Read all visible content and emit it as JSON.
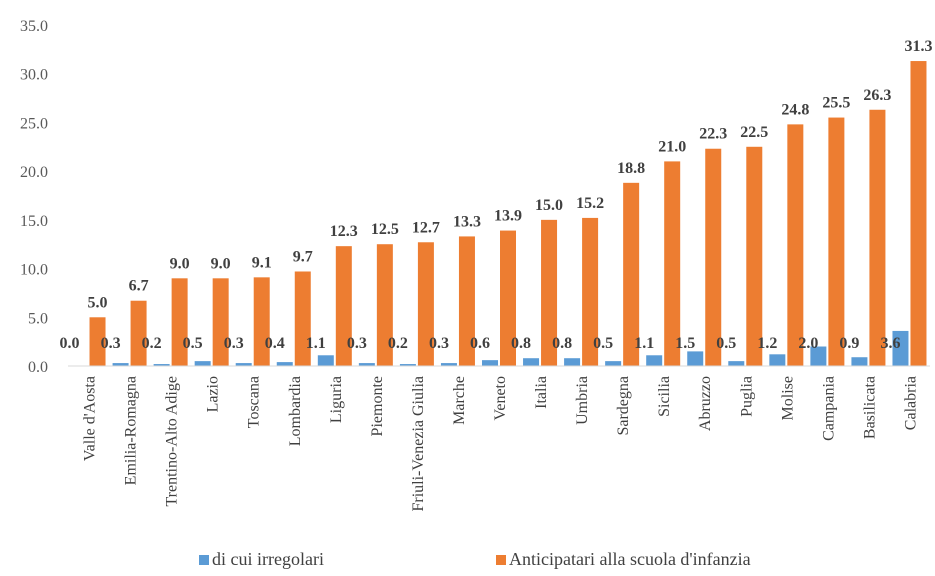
{
  "chart_data": {
    "type": "bar",
    "categories": [
      "Valle d'Aosta",
      "Emilia-Romagna",
      "Trentino-Alto Adige",
      "Lazio",
      "Toscana",
      "Lombardia",
      "Liguria",
      "Piemonte",
      "Friuli-Venezia Giulia",
      "Marche",
      "Veneto",
      "Italia",
      "Umbria",
      "Sardegna",
      "Sicilia",
      "Abruzzo",
      "Puglia",
      "Molise",
      "Campania",
      "Basilicata",
      "Calabria"
    ],
    "series": [
      {
        "name": "di cui irregolari",
        "color": "#5B9BD5",
        "values": [
          0.0,
          0.3,
          0.2,
          0.5,
          0.3,
          0.4,
          1.1,
          0.3,
          0.2,
          0.3,
          0.6,
          0.8,
          0.8,
          0.5,
          1.1,
          1.5,
          0.5,
          1.2,
          2.0,
          0.9,
          3.6
        ],
        "labels": [
          "0.0",
          "0.3",
          "0.2",
          "0.5",
          "0.3",
          "0.4",
          "1.1",
          "0.3",
          "0.2",
          "0.3",
          "0.6",
          "0.8",
          "0.8",
          "0.5",
          "1.1",
          "1.5",
          "0.5",
          "1.2",
          "2.0",
          "0.9",
          "3.6"
        ]
      },
      {
        "name": "Anticipatari alla scuola d'infanzia",
        "color": "#ED7D31",
        "values": [
          5.0,
          6.7,
          9.0,
          9.0,
          9.1,
          9.7,
          12.3,
          12.5,
          12.7,
          13.3,
          13.9,
          15.0,
          15.2,
          18.8,
          21.0,
          22.3,
          22.5,
          24.8,
          25.5,
          26.3,
          31.3
        ],
        "labels": [
          "5.0",
          "6.7",
          "9.0",
          "9.0",
          "9.1",
          "9.7",
          "12.3",
          "12.5",
          "12.7",
          "13.3",
          "13.9",
          "15.0",
          "15.2",
          "18.8",
          "21.0",
          "22.3",
          "22.5",
          "24.8",
          "25.5",
          "26.3",
          "31.3"
        ]
      }
    ],
    "ylim": [
      0,
      35
    ],
    "yticks": [
      "0.0",
      "5.0",
      "10.0",
      "15.0",
      "20.0",
      "25.0",
      "30.0",
      "35.0"
    ],
    "grid": false,
    "legend_position": "bottom"
  }
}
